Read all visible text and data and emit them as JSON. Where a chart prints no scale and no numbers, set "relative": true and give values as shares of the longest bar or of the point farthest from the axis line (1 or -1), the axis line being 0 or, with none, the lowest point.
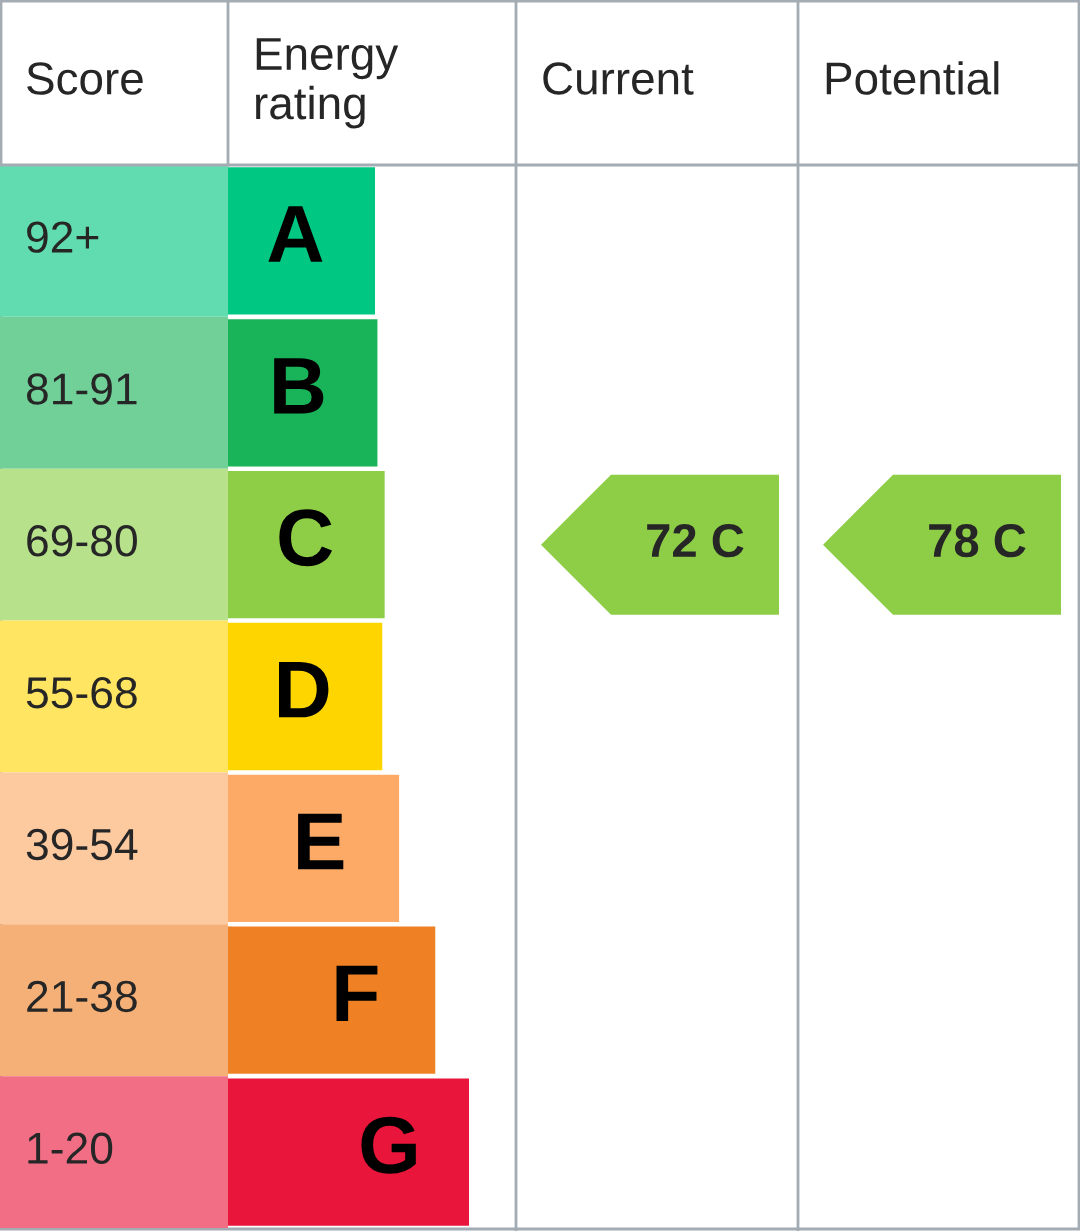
{
  "chart_data": {
    "type": "bar",
    "orientation": "horizontal",
    "relative": true,
    "categories": [
      "A",
      "B",
      "C",
      "D",
      "E",
      "F",
      "G"
    ],
    "values": [
      0.61,
      0.62,
      0.65,
      0.64,
      0.71,
      0.86,
      1.0
    ],
    "colors": [
      "#00c781",
      "#19b459",
      "#8dce46",
      "#ffd500",
      "#fcaa65",
      "#ef8023",
      "#e9153b"
    ],
    "annotations": [
      "Score",
      "Energy\nrating",
      "Current",
      "Potential",
      "92+",
      "81-91",
      "69-80",
      "55-68",
      "39-54",
      "21-38",
      "1-20",
      "72 C",
      "78 C"
    ]
  }
}
